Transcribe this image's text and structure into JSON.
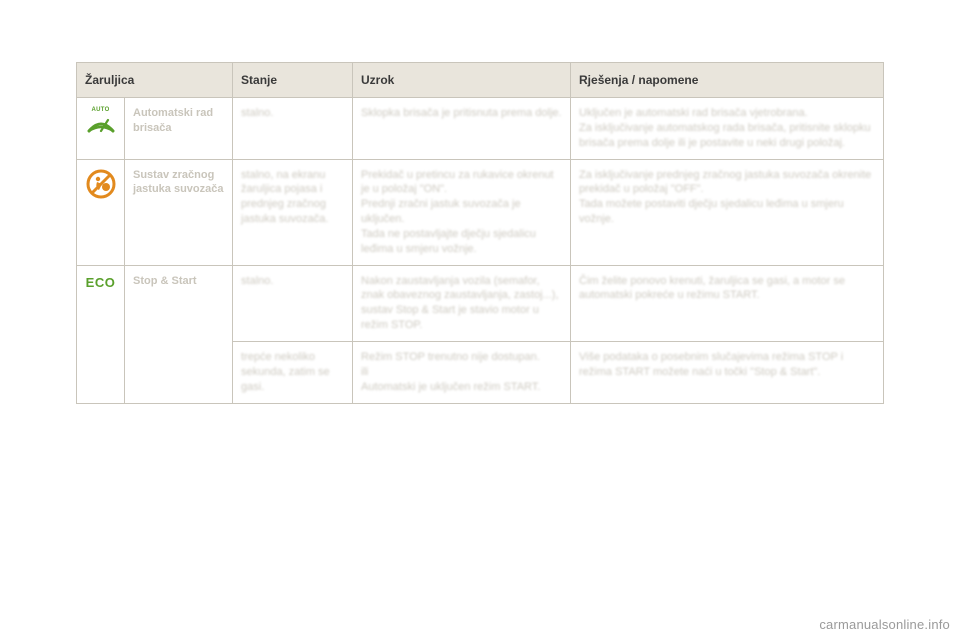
{
  "colors": {
    "header_bg": "#e9e5dc",
    "border": "#c9c5bb",
    "text_dark": "#3a3a3a",
    "text_blur": "#c9c5bb",
    "green": "#5aa02c",
    "orange": "#e28a1e",
    "eco_green": "#5aa02c",
    "watermark": "#9a9a9a"
  },
  "headers": {
    "lamp": "Žaruljica",
    "state": "Stanje",
    "cause": "Uzrok",
    "solution": "Rješenja / napomene"
  },
  "rows": [
    {
      "icon": "auto-wiper",
      "name": "Automatski rad brisača",
      "state": "stalno.",
      "cause": "Sklopka brisača je pritisnuta prema dolje.",
      "solution": "Uključen je automatski rad brisača vjetrobrana.\nZa isključivanje automatskog rada brisača, pritisnite sklopku brisača prema dolje ili je postavite u neki drugi položaj."
    },
    {
      "icon": "airbag-off",
      "name": "Sustav zračnog jastuka suvozača",
      "state": "stalno, na ekranu žaruljica pojasa i prednjeg zračnog jastuka suvozača.",
      "cause": "Prekidač u pretincu za rukavice okrenut je u položaj \"ON\".\nPrednji zračni jastuk suvozača je uključen.\nTada ne postavljajte dječju sjedalicu leđima u smjeru vožnje.",
      "solution": "Za isključivanje prednjeg zračnog jastuka suvozača okrenite prekidač u položaj \"OFF\".\nTada možete postaviti dječju sjedalicu leđima u smjeru vožnje."
    },
    {
      "icon": "eco",
      "name": "Stop & Start",
      "state": "stalno.",
      "cause": "Nakon zaustavljanja vozila (semafor, znak obaveznog zaustavljanja, zastoj...), sustav Stop & Start je stavio motor u režim STOP.",
      "solution": "Čim želite ponovo krenuti, žaruljica se gasi, a motor se automatski pokreće u režimu START."
    },
    {
      "icon": "",
      "name": "",
      "state": "trepće nekoliko sekunda, zatim se gasi.",
      "cause": "Režim STOP trenutno nije dostupan.\nili\nAutomatski je uključen režim START.",
      "solution": "Više podataka o posebnim slučajevima režima STOP i režima START možete naći u točki \"Stop & Start\"."
    }
  ],
  "icons": {
    "auto_label": "AUTO",
    "eco_label": "ECO"
  },
  "watermark": "carmanualsonline.info"
}
